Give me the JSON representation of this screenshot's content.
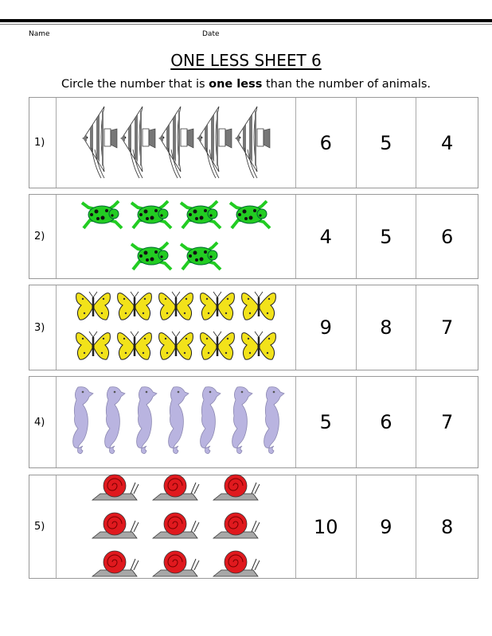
{
  "header": {
    "name_label": "Name",
    "date_label": "Date"
  },
  "title": "ONE LESS SHEET 6",
  "instruction": {
    "before": "Circle the number that is ",
    "bold": "one less",
    "after": " than the number of animals."
  },
  "colors": {
    "fish": "#777777",
    "frog": "#22cc22",
    "butterfly": "#f2e21a",
    "seahorse": "#b9b4e0",
    "snail_shell": "#e0191e",
    "snail_body": "#a8a8a8"
  },
  "questions": [
    {
      "label": "1)",
      "animal": "fish",
      "count": 5,
      "choices": [
        "6",
        "5",
        "4"
      ]
    },
    {
      "label": "2)",
      "animal": "frog",
      "count": 6,
      "choices": [
        "4",
        "5",
        "6"
      ]
    },
    {
      "label": "3)",
      "animal": "butterfly",
      "count": 10,
      "choices": [
        "9",
        "8",
        "7"
      ]
    },
    {
      "label": "4)",
      "animal": "seahorse",
      "count": 7,
      "choices": [
        "5",
        "6",
        "7"
      ]
    },
    {
      "label": "5)",
      "animal": "snail",
      "count": 9,
      "choices": [
        "10",
        "9",
        "8"
      ]
    }
  ]
}
